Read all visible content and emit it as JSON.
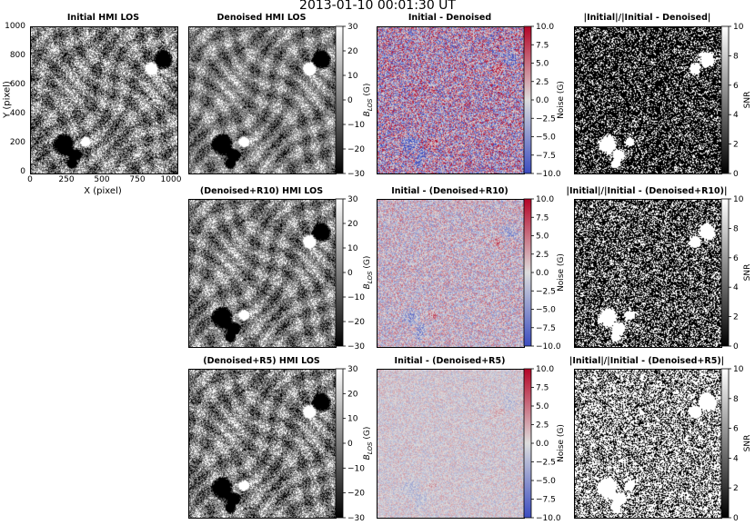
{
  "figure": {
    "suptitle": "2013-01-10  00:01:30  UT"
  },
  "axes": {
    "xlabel": "X (pixel)",
    "ylabel": "Y (pixel)",
    "xticks": [
      "0",
      "250",
      "500",
      "750",
      "1000"
    ],
    "yticks": [
      "1000",
      "800",
      "600",
      "400",
      "200",
      "0"
    ]
  },
  "colorbars": {
    "blos": {
      "label": "B_LOS (G)",
      "label_main": "B",
      "label_sub": "LOS",
      "label_unit": " (G)",
      "ticks": [
        "30",
        "20",
        "10",
        "0",
        "−10",
        "−20",
        "−30"
      ],
      "range": [
        -30,
        30
      ],
      "colormap": "gray"
    },
    "noise": {
      "label": "Noise (G)",
      "ticks": [
        "10.0",
        "7.5",
        "5.0",
        "2.5",
        "0.0",
        "−2.5",
        "−5.0",
        "−7.5",
        "−10.0"
      ],
      "range": [
        -10,
        10
      ],
      "colormap": "coolwarm",
      "color_low": "#3b4cc0",
      "color_mid": "#dddddd",
      "color_high": "#b40426"
    },
    "snr": {
      "label": "SNR",
      "ticks": [
        "10",
        "8",
        "6",
        "4",
        "2",
        "0"
      ],
      "range": [
        0,
        10
      ],
      "colormap": "gray"
    }
  },
  "panels": {
    "initial": {
      "title": "Initial HMI LOS"
    },
    "denoised": {
      "title": "Denoised HMI LOS"
    },
    "diff": {
      "title": "Initial - Denoised"
    },
    "snr": {
      "title": "|Initial|/|Initial - Denoised|"
    },
    "r10": {
      "title": "(Denoised+R10) HMI LOS"
    },
    "diff_r10": {
      "title": "Initial - (Denoised+R10)"
    },
    "snr_r10": {
      "title": "|Initial|/|Initial - (Denoised+R10)|"
    },
    "r5": {
      "title": "(Denoised+R5) HMI LOS"
    },
    "diff_r5": {
      "title": "Initial - (Denoised+R5)"
    },
    "snr_r5": {
      "title": "|Initial|/|Initial - (Denoised+R5)|"
    }
  }
}
